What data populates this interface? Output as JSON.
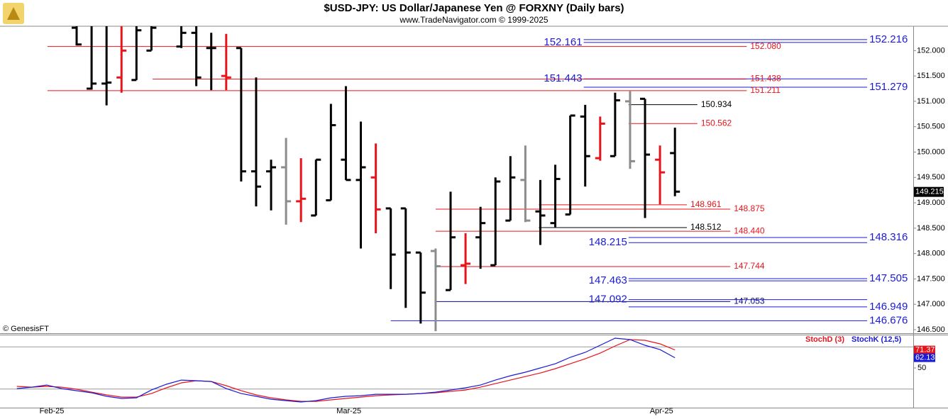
{
  "chart_data": [
    {
      "type": "ohlc",
      "title": "$USD-JPY:  US Dollar/Japanese Yen @ FORXNY  (Daily bars)",
      "subtitle": "www.TradeNavigator.com © 1999-2025",
      "copyright": "© GenesisFT",
      "x": [
        0,
        1,
        2,
        3,
        4,
        5,
        7,
        8,
        9,
        10,
        11,
        12,
        13,
        14,
        15,
        16,
        17,
        18,
        19,
        20,
        21,
        22,
        23,
        24,
        25,
        26,
        27,
        28,
        29,
        30,
        31,
        32,
        33,
        34,
        35,
        36,
        37,
        38,
        39,
        40
      ],
      "open": [
        152.45,
        151.25,
        151.35,
        151.47,
        151.42,
        152.0,
        152.08,
        152.35,
        152.05,
        151.5,
        152.05,
        149.62,
        149.62,
        149.7,
        149.03,
        148.75,
        149.05,
        149.85,
        149.45,
        149.5,
        148.89,
        148.89,
        148.02,
        148.05,
        147.28,
        147.77,
        148.32,
        147.77,
        148.65,
        149.45,
        148.83,
        148.6,
        148.77,
        150.7,
        149.88,
        149.92,
        151.0,
        151.05,
        149.85,
        149.98
      ],
      "high": [
        152.48,
        152.48,
        152.48,
        152.48,
        152.48,
        152.48,
        152.48,
        152.48,
        152.35,
        152.33,
        152.05,
        151.47,
        149.85,
        150.28,
        149.88,
        149.85,
        150.95,
        151.3,
        150.6,
        150.17,
        148.89,
        148.89,
        148.02,
        148.1,
        149.22,
        148.4,
        148.92,
        149.5,
        149.92,
        150.13,
        149.45,
        149.75,
        150.72,
        150.93,
        150.7,
        151.17,
        151.2,
        151.05,
        150.13,
        150.48
      ],
      "low": [
        152.1,
        151.23,
        150.92,
        151.17,
        151.42,
        152.0,
        152.05,
        151.3,
        151.22,
        151.22,
        149.42,
        148.93,
        148.85,
        148.57,
        148.62,
        148.75,
        149.05,
        149.45,
        148.1,
        148.4,
        147.3,
        146.93,
        146.62,
        146.47,
        147.28,
        147.4,
        147.7,
        147.77,
        148.65,
        148.62,
        148.17,
        148.52,
        148.77,
        149.32,
        149.83,
        149.92,
        149.67,
        148.7,
        148.97,
        149.13
      ],
      "close": [
        152.12,
        151.35,
        151.37,
        152.0,
        152.4,
        152.45,
        152.35,
        151.47,
        152.05,
        151.47,
        149.62,
        149.32,
        149.7,
        149.03,
        149.08,
        149.85,
        150.53,
        149.45,
        149.7,
        148.87,
        147.98,
        148.02,
        147.23,
        147.75,
        148.32,
        147.8,
        148.6,
        149.42,
        149.5,
        148.65,
        148.75,
        149.47,
        150.72,
        149.92,
        150.56,
        151.02,
        149.82,
        149.95,
        149.6,
        149.22
      ],
      "colors": [
        "#000000",
        "#000000",
        "#000000",
        "#e8141b",
        "#000000",
        "#000000",
        "#000000",
        "#000000",
        "#000000",
        "#e8141b",
        "#000000",
        "#000000",
        "#000000",
        "#8c8c8c",
        "#e8141b",
        "#000000",
        "#000000",
        "#000000",
        "#000000",
        "#e8141b",
        "#000000",
        "#000000",
        "#000000",
        "#8c8c8c",
        "#000000",
        "#e8141b",
        "#000000",
        "#000000",
        "#000000",
        "#8c8c8c",
        "#000000",
        "#000000",
        "#000000",
        "#000000",
        "#e8141b",
        "#000000",
        "#8c8c8c",
        "#000000",
        "#e8141b",
        "#000000"
      ],
      "xlim": [
        -5.123,
        55.93
      ],
      "ylim": [
        146.43,
        152.48
      ],
      "yticks": [
        {
          "value": 146.5,
          "label": "146.500"
        },
        {
          "value": 147,
          "label": "147.000"
        },
        {
          "value": 147.5,
          "label": "147.500"
        },
        {
          "value": 148,
          "label": "148.000"
        },
        {
          "value": 148.5,
          "label": "148.500"
        },
        {
          "value": 149,
          "label": "149.000"
        },
        {
          "value": 149.5,
          "label": "149.500"
        },
        {
          "value": 150,
          "label": "150.000"
        },
        {
          "value": 150.5,
          "label": "150.500"
        },
        {
          "value": 151,
          "label": "151.000"
        },
        {
          "value": 151.5,
          "label": "151.500"
        },
        {
          "value": 152,
          "label": "152.000"
        }
      ],
      "last": 149.215,
      "levels": [
        {
          "value": 152.216,
          "color": "#1b1bd6",
          "from": 33.9,
          "to": 52.85,
          "label_at": "right"
        },
        {
          "value": 152.161,
          "color": "#1b1bd6",
          "from": 33.9,
          "to": 52.85,
          "label_at": "start"
        },
        {
          "value": 152.08,
          "label": "152.080",
          "color": "#e8141b",
          "from": -1.95,
          "to": 44.8,
          "label_at": "end"
        },
        {
          "value": 151.443,
          "color": "#1b1bd6",
          "from": 33.9,
          "to": 52.85,
          "label_at": "start"
        },
        {
          "value": 151.438,
          "color": "#e8141b",
          "from": 5.08,
          "to": 44.8,
          "label_at": "end"
        },
        {
          "value": 151.279,
          "color": "#1b1bd6",
          "from": 33.9,
          "to": 52.85,
          "label_at": "right"
        },
        {
          "value": 151.211,
          "color": "#e8141b",
          "from": -1.95,
          "to": 44.8,
          "label_at": "end"
        },
        {
          "value": 150.934,
          "color": "#000000",
          "from": 36.9,
          "to": 41.5,
          "label_at": "end"
        },
        {
          "value": 150.562,
          "color": "#e8141b",
          "from": 36.9,
          "to": 41.5,
          "label_at": "end"
        },
        {
          "value": 148.961,
          "color": "#e8141b",
          "from": 30.9,
          "to": 40.8,
          "label_at": "end"
        },
        {
          "value": 148.875,
          "color": "#e8141b",
          "from": 24.0,
          "to": 43.7,
          "label_at": "end"
        },
        {
          "value": 148.512,
          "color": "#000000",
          "from": 30.9,
          "to": 40.8,
          "label_at": "end"
        },
        {
          "value": 148.44,
          "label": "148.440",
          "color": "#e8141b",
          "from": 24.0,
          "to": 43.7,
          "label_at": "end"
        },
        {
          "value": 148.316,
          "color": "#1b1bd6",
          "from": 36.9,
          "to": 52.85,
          "label_at": "right"
        },
        {
          "value": 148.215,
          "color": "#1b1bd6",
          "from": 36.9,
          "to": 52.85,
          "label_at": "start"
        },
        {
          "value": 147.744,
          "color": "#e8141b",
          "from": 24.0,
          "to": 43.7,
          "label_at": "end"
        },
        {
          "value": 147.505,
          "color": "#1b1bd6",
          "from": 36.9,
          "to": 52.85,
          "label_at": "right"
        },
        {
          "value": 147.463,
          "color": "#1b1bd6",
          "from": 36.9,
          "to": 52.85,
          "label_at": "start"
        },
        {
          "value": 147.092,
          "color": "#1b1bd6",
          "from": 36.9,
          "to": 52.85,
          "label_at": "start"
        },
        {
          "value": 147.053,
          "color": "#0a0a8a",
          "from": 24.0,
          "to": 43.7,
          "label_at": "end"
        },
        {
          "value": 146.949,
          "color": "#1b1bd6",
          "from": 36.9,
          "to": 52.85,
          "label_at": "right"
        },
        {
          "value": 146.676,
          "color": "#1b1bd6",
          "from": 21.0,
          "to": 52.85,
          "label_at": "right"
        }
      ]
    },
    {
      "type": "line",
      "x": [
        -4,
        -3,
        -2,
        -1,
        0,
        1,
        2,
        3,
        4,
        5,
        6,
        7,
        8,
        9,
        10,
        11,
        12,
        13,
        14,
        15,
        16,
        17,
        18,
        19,
        20,
        21,
        22,
        23,
        24,
        25,
        26,
        27,
        28,
        29,
        30,
        31,
        32,
        33,
        34,
        35,
        36,
        37,
        38,
        39,
        40
      ],
      "series": [
        {
          "name": "StochD (3)",
          "color": "#e8141b",
          "values": [
            28.2,
            27.3,
            28.2,
            27.3,
            24.8,
            21.4,
            18.1,
            15.5,
            15.5,
            19.7,
            26.5,
            32.4,
            34.9,
            34.0,
            29.0,
            23.1,
            18.1,
            14.7,
            12.2,
            10.5,
            10.5,
            12.2,
            13.9,
            15.5,
            17.2,
            18.1,
            18.9,
            19.7,
            20.6,
            22.3,
            23.9,
            27.3,
            31.5,
            35.7,
            39.9,
            44.1,
            49.2,
            55.0,
            60.9,
            67.6,
            76.1,
            83.6,
            82.8,
            78.6,
            71.37
          ]
        },
        {
          "name": "StochK (12,5)",
          "color": "#1b1bd6",
          "values": [
            25.6,
            27.3,
            29.8,
            25.6,
            23.1,
            20.6,
            16.4,
            13.9,
            14.7,
            23.9,
            30.7,
            35.7,
            34.9,
            34.0,
            25.6,
            19.7,
            16.4,
            13.0,
            11.3,
            9.7,
            11.3,
            14.7,
            16.4,
            17.2,
            18.9,
            18.9,
            18.9,
            19.7,
            21.4,
            23.9,
            26.5,
            29.8,
            35.7,
            40.8,
            45.0,
            50.0,
            55.0,
            62.6,
            68.5,
            76.9,
            85.3,
            83.6,
            76.9,
            71.8,
            62.13
          ]
        }
      ],
      "xlim": [
        -5.123,
        55.93
      ],
      "xticks": [
        {
          "value": -1.66,
          "label": "Feb-25"
        },
        {
          "value": 18.2,
          "label": "Mar-25"
        },
        {
          "value": 39.1,
          "label": "Apr-25"
        }
      ],
      "ylim": [
        3,
        87
      ],
      "yticks": [
        50
      ],
      "grid_lines": [
        25,
        75
      ]
    }
  ]
}
